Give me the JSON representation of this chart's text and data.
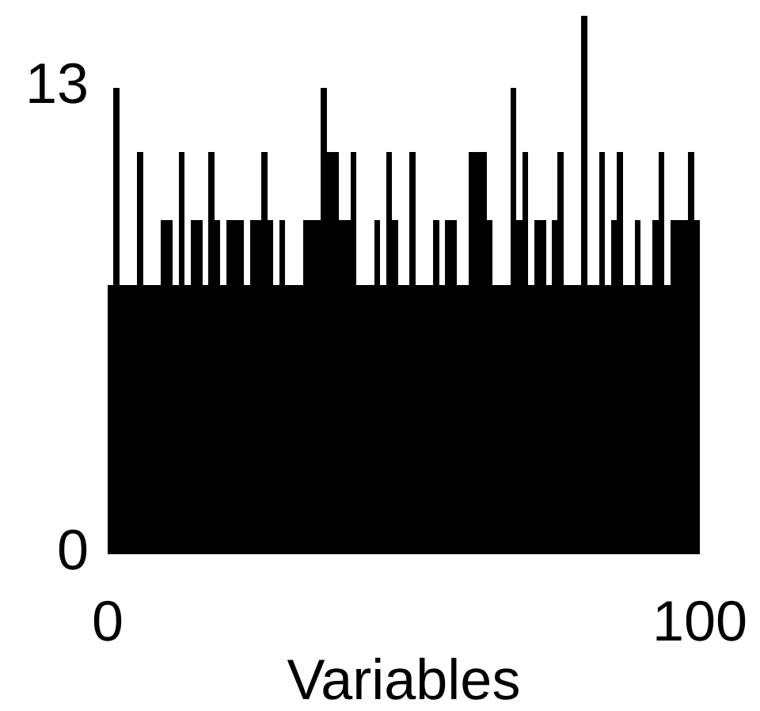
{
  "chart_data": {
    "type": "histogram",
    "xlabel": "Variables",
    "bins": [
      0,
      1,
      2,
      3,
      4,
      5,
      6,
      7,
      8,
      9,
      10,
      11,
      12,
      13,
      14,
      15,
      16,
      17,
      18,
      19,
      20,
      21,
      22,
      23,
      24,
      25,
      26,
      27,
      28,
      29,
      30,
      31,
      32,
      33,
      34,
      35,
      36,
      37,
      38,
      39,
      40,
      41,
      42,
      43,
      44,
      45,
      46,
      47,
      48,
      49,
      50,
      51,
      52,
      53,
      54,
      55,
      56,
      57,
      58,
      59,
      60,
      61,
      62,
      63,
      64,
      65,
      66,
      67,
      68,
      69,
      70,
      71,
      72,
      73,
      74,
      75,
      76,
      77,
      78,
      79,
      80,
      81,
      82,
      83,
      84,
      85,
      86,
      87,
      88,
      89,
      90,
      91,
      92,
      93,
      94,
      95,
      96,
      97,
      98,
      99,
      100
    ],
    "values": [
      7.5,
      13,
      7.5,
      7.5,
      7.5,
      11.2,
      7.5,
      7.5,
      7.5,
      9.3,
      9.3,
      7.5,
      11.2,
      7.5,
      9.3,
      9.3,
      7.5,
      11.2,
      9.3,
      7.5,
      9.3,
      9.3,
      9.3,
      7.5,
      9.3,
      9.3,
      11.2,
      9.3,
      7.5,
      9.3,
      7.5,
      7.5,
      7.5,
      9.3,
      9.3,
      9.3,
      13,
      11.2,
      11.2,
      9.3,
      9.3,
      11.2,
      7.5,
      7.5,
      7.5,
      9.3,
      7.5,
      11.2,
      9.3,
      7.5,
      7.5,
      11.2,
      7.5,
      7.5,
      7.5,
      9.3,
      7.5,
      9.3,
      9.3,
      7.5,
      7.5,
      11.2,
      11.2,
      11.2,
      9.3,
      7.5,
      7.5,
      7.5,
      13,
      9.3,
      11.2,
      7.5,
      9.3,
      9.3,
      7.5,
      9.3,
      11.2,
      7.5,
      7.5,
      7.5,
      15,
      7.5,
      7.5,
      11.2,
      7.5,
      9.3,
      11.2,
      7.5,
      7.5,
      9.3,
      7.5,
      7.5,
      9.3,
      11.2,
      7.5,
      9.3,
      9.3,
      9.3,
      11.2,
      9.3
    ],
    "color": "#000000",
    "xlim": [
      0,
      100
    ],
    "xticks": [
      0,
      100
    ],
    "ylim": [
      0,
      15
    ],
    "yticks": [
      0,
      13
    ],
    "grid": false
  }
}
